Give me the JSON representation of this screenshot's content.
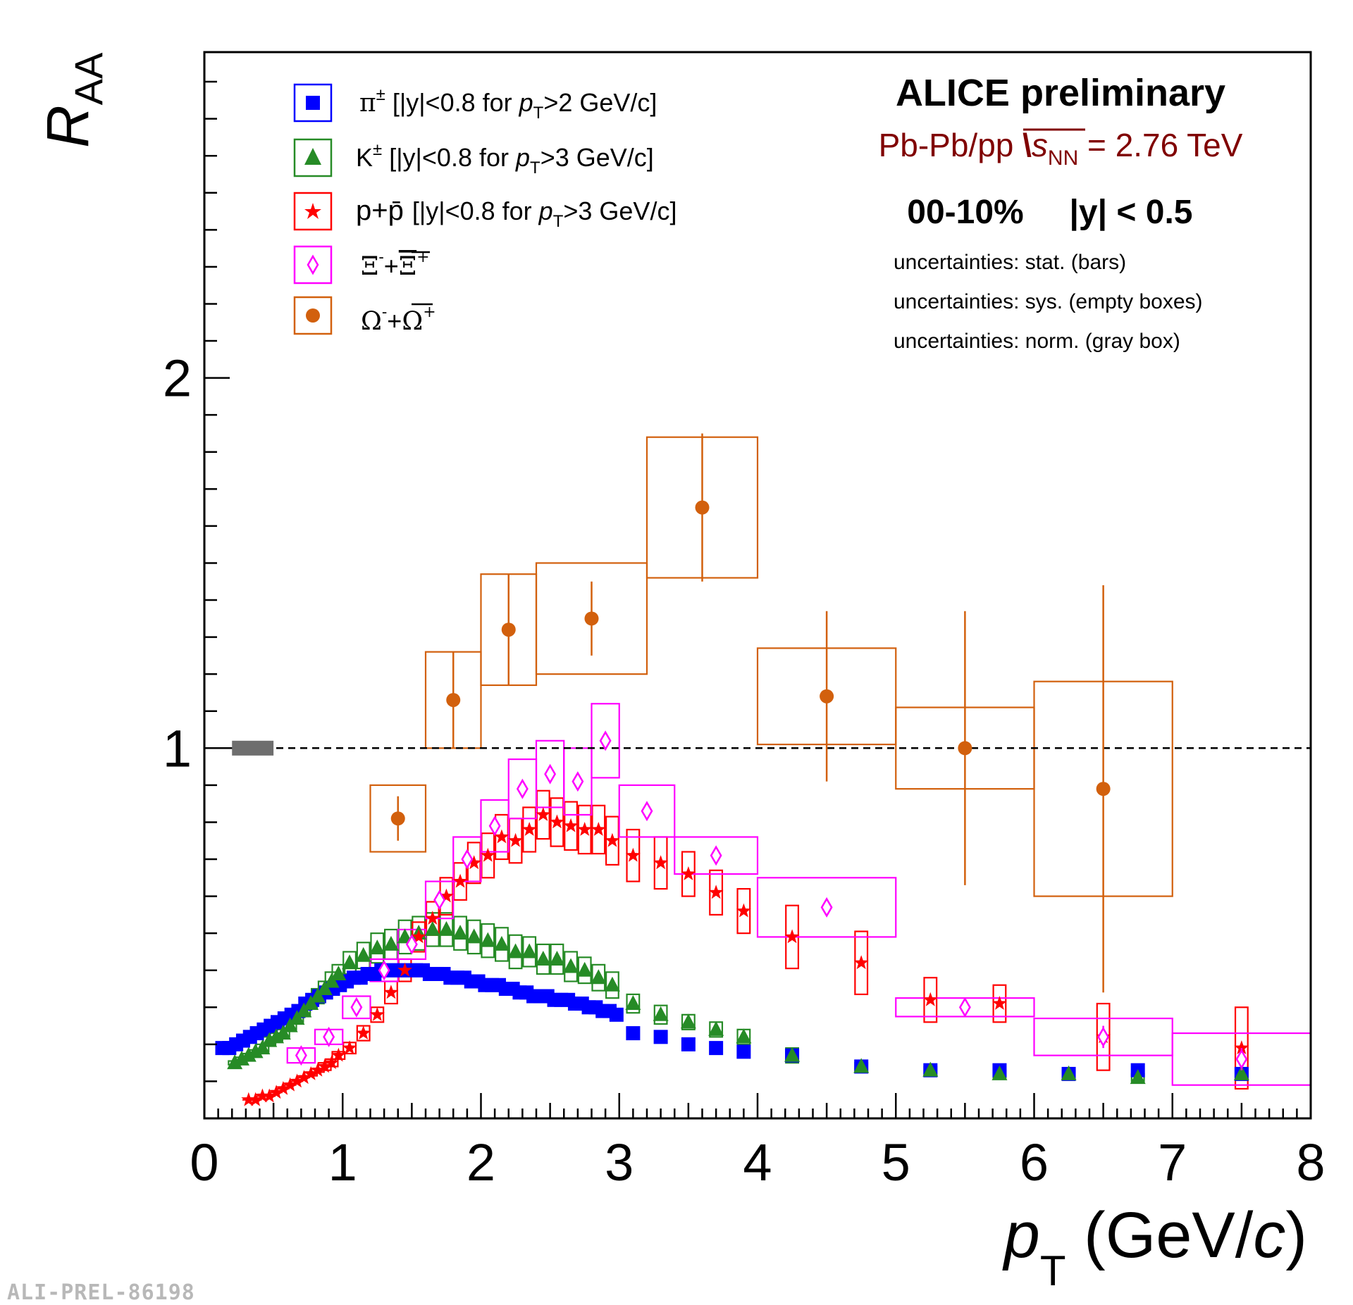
{
  "chart_data": {
    "type": "scatter",
    "title": "ALICE preliminary",
    "subtitle": {
      "system": "Pb-Pb/pp",
      "energy_symbol": "s",
      "energy_sub": "NN",
      "energy_value": "= 2.76 TeV"
    },
    "centrality": "00-10%",
    "rapidity": "|y| < 0.5",
    "uncertainty_notes": [
      "uncertainties: stat. (bars)",
      "uncertainties: sys. (empty boxes)",
      "uncertainties: norm. (gray box)"
    ],
    "xlabel": {
      "main": "p",
      "sub": "T",
      "unit": " (GeV/",
      "unit_c": "c",
      "close": ")"
    },
    "ylabel": {
      "main": "R",
      "sub": "AA"
    },
    "xlim": [
      0,
      8
    ],
    "ylim": [
      0,
      2.88
    ],
    "x_ticks": [
      "0",
      "1",
      "2",
      "3",
      "4",
      "5",
      "6",
      "7",
      "8"
    ],
    "y_ticks": [
      {
        "value": 1,
        "label": "1"
      },
      {
        "value": 2,
        "label": "2"
      }
    ],
    "reference_line": 1.0,
    "norm_box": {
      "x0": 0.2,
      "x1": 0.5,
      "y0": 0.98,
      "y1": 1.02,
      "color": "#6e6e6e"
    },
    "series": [
      {
        "name": "pi",
        "legend_symbol": "π",
        "legend_sup": "±",
        "legend_text": "[|y|<0.8 for ",
        "legend_cut": ">2 GeV/c]",
        "marker": "square",
        "color": "#0000ff",
        "x": [
          0.13,
          0.18,
          0.23,
          0.28,
          0.33,
          0.38,
          0.43,
          0.48,
          0.53,
          0.58,
          0.63,
          0.68,
          0.73,
          0.78,
          0.83,
          0.88,
          0.93,
          0.98,
          1.03,
          1.08,
          1.13,
          1.18,
          1.23,
          1.28,
          1.33,
          1.38,
          1.43,
          1.48,
          1.53,
          1.58,
          1.63,
          1.68,
          1.73,
          1.78,
          1.83,
          1.88,
          1.93,
          1.98,
          2.03,
          2.08,
          2.13,
          2.18,
          2.23,
          2.28,
          2.33,
          2.38,
          2.43,
          2.48,
          2.53,
          2.58,
          2.63,
          2.68,
          2.73,
          2.78,
          2.83,
          2.88,
          2.93,
          2.98,
          3.1,
          3.3,
          3.5,
          3.7,
          3.9,
          4.25,
          4.75,
          5.25,
          5.75,
          6.25,
          6.75,
          7.5
        ],
        "y": [
          0.19,
          0.19,
          0.2,
          0.21,
          0.22,
          0.23,
          0.24,
          0.25,
          0.26,
          0.27,
          0.28,
          0.29,
          0.31,
          0.32,
          0.33,
          0.34,
          0.35,
          0.36,
          0.37,
          0.38,
          0.38,
          0.39,
          0.39,
          0.4,
          0.4,
          0.4,
          0.4,
          0.4,
          0.4,
          0.4,
          0.39,
          0.39,
          0.39,
          0.38,
          0.38,
          0.38,
          0.37,
          0.37,
          0.36,
          0.36,
          0.36,
          0.35,
          0.35,
          0.34,
          0.34,
          0.33,
          0.33,
          0.33,
          0.32,
          0.32,
          0.32,
          0.31,
          0.31,
          0.3,
          0.3,
          0.29,
          0.29,
          0.28,
          0.23,
          0.22,
          0.2,
          0.19,
          0.18,
          0.17,
          0.14,
          0.13,
          0.13,
          0.12,
          0.13,
          0.12
        ],
        "sys_hw": 0.025,
        "sys": [
          0.01,
          0.01,
          0.01,
          0.01,
          0.01,
          0.01,
          0.01,
          0.01,
          0.01,
          0.01,
          0.01,
          0.01,
          0.01,
          0.01,
          0.01,
          0.01,
          0.01,
          0.01,
          0.01,
          0.01,
          0.01,
          0.01,
          0.01,
          0.01,
          0.01,
          0.01,
          0.01,
          0.01,
          0.01,
          0.01,
          0.01,
          0.01,
          0.01,
          0.01,
          0.01,
          0.01,
          0.01,
          0.01,
          0.01,
          0.01,
          0.01,
          0.01,
          0.01,
          0.01,
          0.01,
          0.01,
          0.01,
          0.01,
          0.01,
          0.01,
          0.01,
          0.01,
          0.01,
          0.01,
          0.01,
          0.01,
          0.01,
          0.01,
          0,
          0,
          0,
          0,
          0,
          0,
          0,
          0,
          0,
          0,
          0,
          0
        ],
        "stat": []
      },
      {
        "name": "K",
        "legend_symbol": "K",
        "legend_sup": "±",
        "legend_text": "[|y|<0.8 for ",
        "legend_cut": ">3 GeV/c]",
        "marker": "triangle",
        "color": "#268b26",
        "x": [
          0.22,
          0.27,
          0.32,
          0.37,
          0.42,
          0.47,
          0.52,
          0.57,
          0.62,
          0.67,
          0.72,
          0.77,
          0.82,
          0.87,
          0.92,
          0.97,
          1.05,
          1.15,
          1.25,
          1.35,
          1.45,
          1.55,
          1.65,
          1.75,
          1.85,
          1.95,
          2.05,
          2.15,
          2.25,
          2.35,
          2.45,
          2.55,
          2.65,
          2.75,
          2.85,
          2.95,
          3.1,
          3.3,
          3.5,
          3.7,
          3.9,
          4.25,
          4.75,
          5.25,
          5.75,
          6.25,
          6.75,
          7.5
        ],
        "y": [
          0.15,
          0.16,
          0.17,
          0.18,
          0.19,
          0.21,
          0.22,
          0.23,
          0.25,
          0.27,
          0.29,
          0.31,
          0.33,
          0.35,
          0.37,
          0.39,
          0.42,
          0.44,
          0.46,
          0.47,
          0.49,
          0.5,
          0.51,
          0.51,
          0.5,
          0.49,
          0.48,
          0.47,
          0.45,
          0.45,
          0.43,
          0.43,
          0.41,
          0.4,
          0.38,
          0.36,
          0.31,
          0.28,
          0.26,
          0.24,
          0.22,
          0.17,
          0.14,
          0.13,
          0.12,
          0.12,
          0.11,
          0.12
        ],
        "sys_hw": 0.045,
        "sys": [
          0.005,
          0.005,
          0.005,
          0.005,
          0.01,
          0.01,
          0.01,
          0.01,
          0.01,
          0.01,
          0.015,
          0.015,
          0.02,
          0.02,
          0.025,
          0.025,
          0.03,
          0.035,
          0.04,
          0.04,
          0.045,
          0.045,
          0.045,
          0.045,
          0.045,
          0.045,
          0.045,
          0.045,
          0.045,
          0.04,
          0.04,
          0.04,
          0.04,
          0.035,
          0.035,
          0.035,
          0.025,
          0.025,
          0.02,
          0.02,
          0.02,
          0.02,
          0.01,
          0.01,
          0.01,
          0.01,
          0.01,
          0.01
        ],
        "stat": []
      },
      {
        "name": "p",
        "legend_symbol": "p+p̄",
        "legend_sup": "",
        "legend_text": "[|y|<0.8 for ",
        "legend_cut": ">3 GeV/c]",
        "marker": "star",
        "color": "#ff0000",
        "x": [
          0.32,
          0.37,
          0.42,
          0.47,
          0.52,
          0.57,
          0.62,
          0.67,
          0.72,
          0.77,
          0.82,
          0.87,
          0.92,
          0.97,
          1.05,
          1.15,
          1.25,
          1.35,
          1.45,
          1.55,
          1.65,
          1.75,
          1.85,
          1.95,
          2.05,
          2.15,
          2.25,
          2.35,
          2.45,
          2.55,
          2.65,
          2.75,
          2.85,
          2.95,
          3.1,
          3.3,
          3.5,
          3.7,
          3.9,
          4.25,
          4.75,
          5.25,
          5.75,
          6.5,
          7.5
        ],
        "y": [
          0.05,
          0.05,
          0.06,
          0.06,
          0.07,
          0.08,
          0.09,
          0.1,
          0.11,
          0.12,
          0.13,
          0.14,
          0.15,
          0.17,
          0.19,
          0.23,
          0.28,
          0.34,
          0.4,
          0.49,
          0.54,
          0.6,
          0.64,
          0.69,
          0.71,
          0.76,
          0.75,
          0.78,
          0.82,
          0.8,
          0.79,
          0.78,
          0.78,
          0.75,
          0.71,
          0.69,
          0.66,
          0.61,
          0.56,
          0.49,
          0.42,
          0.32,
          0.31,
          0.22,
          0.19
        ],
        "sys_hw": 0.045,
        "sys": [
          0,
          0,
          0,
          0,
          0,
          0,
          0,
          0,
          0,
          0.005,
          0.005,
          0.01,
          0.01,
          0.01,
          0.015,
          0.02,
          0.02,
          0.03,
          0.03,
          0.04,
          0.045,
          0.05,
          0.05,
          0.055,
          0.06,
          0.06,
          0.06,
          0.06,
          0.065,
          0.065,
          0.065,
          0.065,
          0.065,
          0.065,
          0.07,
          0.07,
          0.06,
          0.06,
          0.06,
          0.085,
          0.085,
          0.06,
          0.05,
          0.09,
          0.11
        ],
        "stat": []
      },
      {
        "name": "Xi",
        "legend_symbol": "Ξ",
        "legend_sup": "-",
        "legend_text": "",
        "legend_cut": "",
        "marker": "diamond",
        "color": "#ff00ff",
        "x": [
          0.7,
          0.9,
          1.1,
          1.3,
          1.5,
          1.7,
          1.9,
          2.1,
          2.3,
          2.5,
          2.7,
          2.9,
          3.2,
          3.7,
          4.5,
          5.5,
          6.5,
          7.5
        ],
        "y": [
          0.17,
          0.22,
          0.3,
          0.4,
          0.47,
          0.59,
          0.7,
          0.79,
          0.89,
          0.93,
          0.91,
          1.02,
          0.83,
          0.71,
          0.57,
          0.3,
          0.22,
          0.16
        ],
        "sys_halfwidth": [
          0.1,
          0.1,
          0.1,
          0.1,
          0.1,
          0.1,
          0.1,
          0.1,
          0.1,
          0.1,
          0.1,
          0.1,
          0.2,
          0.3,
          0.5,
          0.5,
          0.5,
          0.5
        ],
        "sys": [
          0.02,
          0.02,
          0.03,
          0.03,
          0.04,
          0.05,
          0.06,
          0.07,
          0.08,
          0.09,
          0.09,
          0.1,
          0.07,
          0.05,
          0.08,
          0.025,
          0.05,
          0.07
        ],
        "stat": [
          0.01,
          0.01,
          0.01,
          0.01,
          0.02,
          0.02,
          0.02,
          0.02,
          0.02,
          0.02,
          0.02,
          0.02,
          0.02,
          0.02,
          0.02,
          0.02,
          0.03,
          0.03
        ],
        "legend_sym2": "Ξ",
        "legend_sup2": "+"
      },
      {
        "name": "Omega",
        "legend_symbol": "Ω",
        "legend_sup": "-",
        "legend_text": "",
        "legend_cut": "",
        "marker": "circle",
        "color": "#d2600d",
        "x": [
          1.4,
          1.8,
          2.2,
          2.8,
          3.6,
          4.5,
          5.5,
          6.5
        ],
        "y": [
          0.81,
          1.13,
          1.32,
          1.35,
          1.65,
          1.14,
          1.0,
          0.89
        ],
        "sys_halfwidth": [
          0.2,
          0.2,
          0.2,
          0.4,
          0.4,
          0.5,
          0.5,
          0.5
        ],
        "sys": [
          0.09,
          0.13,
          0.15,
          0.15,
          0.19,
          0.13,
          0.11,
          0.29
        ],
        "stat": [
          0.06,
          0.13,
          0.15,
          0.1,
          0.2,
          0.23,
          0.37,
          0.55
        ],
        "legend_sym2": "Ω",
        "legend_sup2": "+"
      }
    ]
  },
  "legend_pt": {
    "main": "p",
    "sub": "T"
  },
  "watermark": "ALI-PREL-86198"
}
